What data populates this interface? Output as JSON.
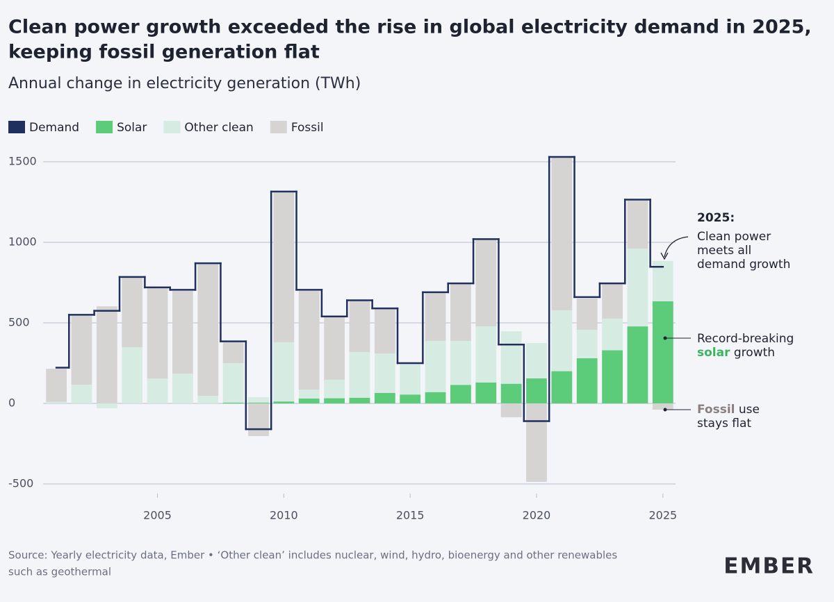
{
  "chart_data": {
    "type": "bar",
    "title": [
      "Clean power growth exceeded the rise in global electricity demand in 2025,",
      "keeping fossil generation flat"
    ],
    "subtitle": "Annual change in electricity generation (TWh)",
    "x": [
      2001,
      2002,
      2003,
      2004,
      2005,
      2006,
      2007,
      2008,
      2009,
      2010,
      2011,
      2012,
      2013,
      2014,
      2015,
      2016,
      2017,
      2018,
      2019,
      2020,
      2021,
      2022,
      2023,
      2024,
      2025
    ],
    "series": [
      {
        "name": "Demand",
        "color": "#1f2f5e",
        "type": "step",
        "values": [
          222,
          550,
          575,
          785,
          720,
          705,
          870,
          385,
          -160,
          1315,
          705,
          540,
          640,
          590,
          250,
          690,
          745,
          1020,
          365,
          -110,
          1530,
          660,
          745,
          1265,
          848
        ]
      },
      {
        "name": "Solar",
        "color": "#5ccb7a",
        "type": "stack",
        "values": [
          0,
          0,
          0,
          0,
          0,
          0,
          0,
          5,
          5,
          12,
          30,
          32,
          35,
          65,
          55,
          70,
          115,
          130,
          122,
          155,
          200,
          280,
          330,
          478,
          634
        ]
      },
      {
        "name": "Other clean",
        "color": "#d6ebe1",
        "type": "stack",
        "values": [
          10,
          116,
          -30,
          349,
          155,
          185,
          47,
          245,
          34,
          368,
          56,
          115,
          284,
          245,
          195,
          318,
          273,
          348,
          326,
          220,
          378,
          177,
          196,
          483,
          250
        ]
      },
      {
        "name": "Fossil",
        "color": "#d6d3d3",
        "type": "stack",
        "values": [
          205,
          427,
          603,
          431,
          565,
          513,
          819,
          129,
          -203,
          935,
          612,
          392,
          315,
          276,
          0,
          302,
          353,
          543,
          -86,
          -487,
          956,
          194,
          215,
          298,
          -39
        ]
      }
    ],
    "xlim": [
      1999.1,
      2025.5
    ],
    "xticks": [
      2005,
      2010,
      2015,
      2020,
      2025
    ],
    "ylim": [
      -560,
      1580
    ],
    "yticks": [
      -500,
      0,
      500,
      1000,
      1500
    ],
    "grid": true,
    "legend": "top-left",
    "annotations": [
      {
        "heading": "2025:",
        "lines": [
          "Clean power",
          "meets all",
          "demand growth"
        ]
      },
      {
        "lines": [
          "Record-breaking"
        ],
        "highlight": "solar",
        "rest": "growth"
      },
      {
        "highlight": "Fossil",
        "rest": "use",
        "lines": [
          "stays flat"
        ]
      }
    ],
    "source": [
      "Source: Yearly electricity data, Ember • ‘Other clean’ includes nuclear, wind, hydro, bioenergy and other renewables",
      "such as geothermal"
    ],
    "logo": "EMBER"
  }
}
